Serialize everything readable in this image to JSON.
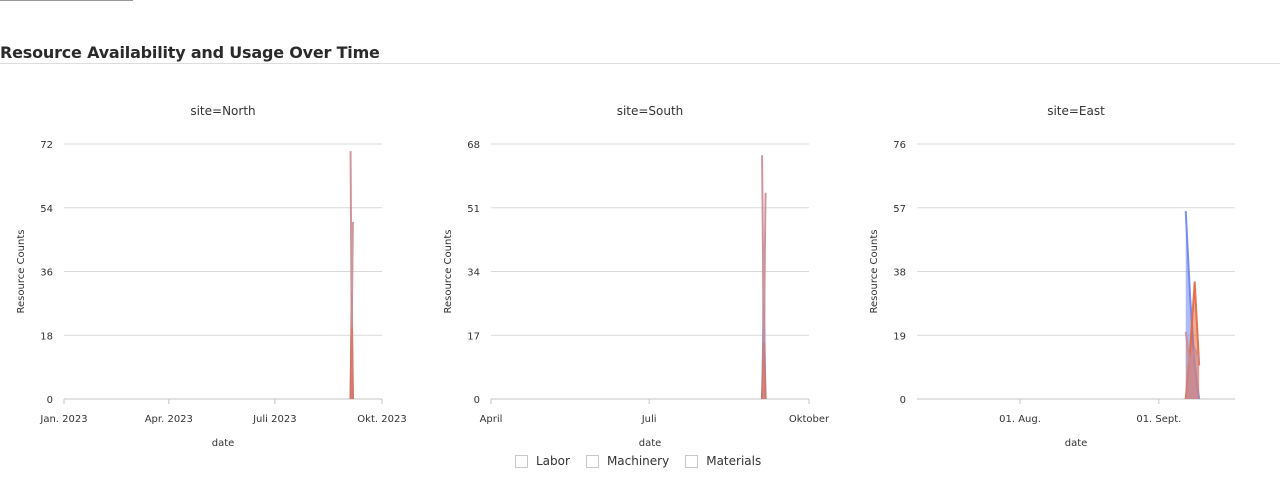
{
  "page": {
    "title": "Resource Availability and Usage Over Time"
  },
  "legend": {
    "items": [
      {
        "label": "Labor"
      },
      {
        "label": "Machinery"
      },
      {
        "label": "Materials"
      }
    ]
  },
  "colors": {
    "Labor": "#6b83ef",
    "Machinery": "#e2683f",
    "Materials": "#c98c96",
    "grid": "#d9d9d9",
    "axis": "#cccccc"
  },
  "chart_data": [
    {
      "type": "area",
      "title": "site=North",
      "xlabel": "date",
      "ylabel": "Resource Counts",
      "xlim": [
        "2023-01-01",
        "2023-10-01"
      ],
      "x_ticks": [
        {
          "x": "2023-01-01",
          "label": "Jan. 2023"
        },
        {
          "x": "2023-04-01",
          "label": "Apr. 2023"
        },
        {
          "x": "2023-07-01",
          "label": "Juli 2023"
        },
        {
          "x": "2023-10-01",
          "label": "Okt. 2023"
        }
      ],
      "ylim": [
        0,
        72
      ],
      "y_ticks": [
        0,
        18,
        36,
        54,
        72
      ],
      "x": [
        "2023-09-04",
        "2023-09-05",
        "2023-09-06"
      ],
      "series": [
        {
          "name": "Labor",
          "values": [
            0,
            22,
            0
          ]
        },
        {
          "name": "Machinery",
          "values": [
            0,
            30,
            0
          ]
        },
        {
          "name": "Materials",
          "values": [
            70,
            20,
            50
          ]
        }
      ]
    },
    {
      "type": "area",
      "title": "site=South",
      "xlabel": "date",
      "ylabel": "Resource Counts",
      "xlim": [
        "2023-04-01",
        "2023-10-01"
      ],
      "x_ticks": [
        {
          "x": "2023-04-01",
          "label": "April"
        },
        {
          "x": "2023-07-01",
          "label": "Juli"
        },
        {
          "x": "2023-10-01",
          "label": "Oktober"
        }
      ],
      "ylim": [
        0,
        68
      ],
      "y_ticks": [
        0,
        17,
        34,
        51,
        68
      ],
      "x": [
        "2023-09-04",
        "2023-09-05",
        "2023-09-06"
      ],
      "series": [
        {
          "name": "Labor",
          "values": [
            0,
            25,
            0
          ]
        },
        {
          "name": "Machinery",
          "values": [
            0,
            15,
            0
          ]
        },
        {
          "name": "Materials",
          "values": [
            65,
            15,
            55
          ]
        }
      ]
    },
    {
      "type": "area",
      "title": "site=East",
      "xlabel": "date",
      "ylabel": "Resource Counts",
      "xlim": [
        "2023-07-09",
        "2023-09-18"
      ],
      "x_ticks": [
        {
          "x": "2023-08-01",
          "label": "01. Aug."
        },
        {
          "x": "2023-09-01",
          "label": "01. Sept."
        }
      ],
      "ylim": [
        0,
        76
      ],
      "y_ticks": [
        0,
        19,
        38,
        57,
        76
      ],
      "x": [
        "2023-09-07",
        "2023-09-08",
        "2023-09-09",
        "2023-09-10"
      ],
      "series": [
        {
          "name": "Labor",
          "values": [
            56,
            30,
            10,
            0
          ]
        },
        {
          "name": "Machinery",
          "values": [
            0,
            15,
            35,
            10
          ]
        },
        {
          "name": "Materials",
          "values": [
            20,
            10,
            15,
            12
          ]
        }
      ]
    }
  ]
}
